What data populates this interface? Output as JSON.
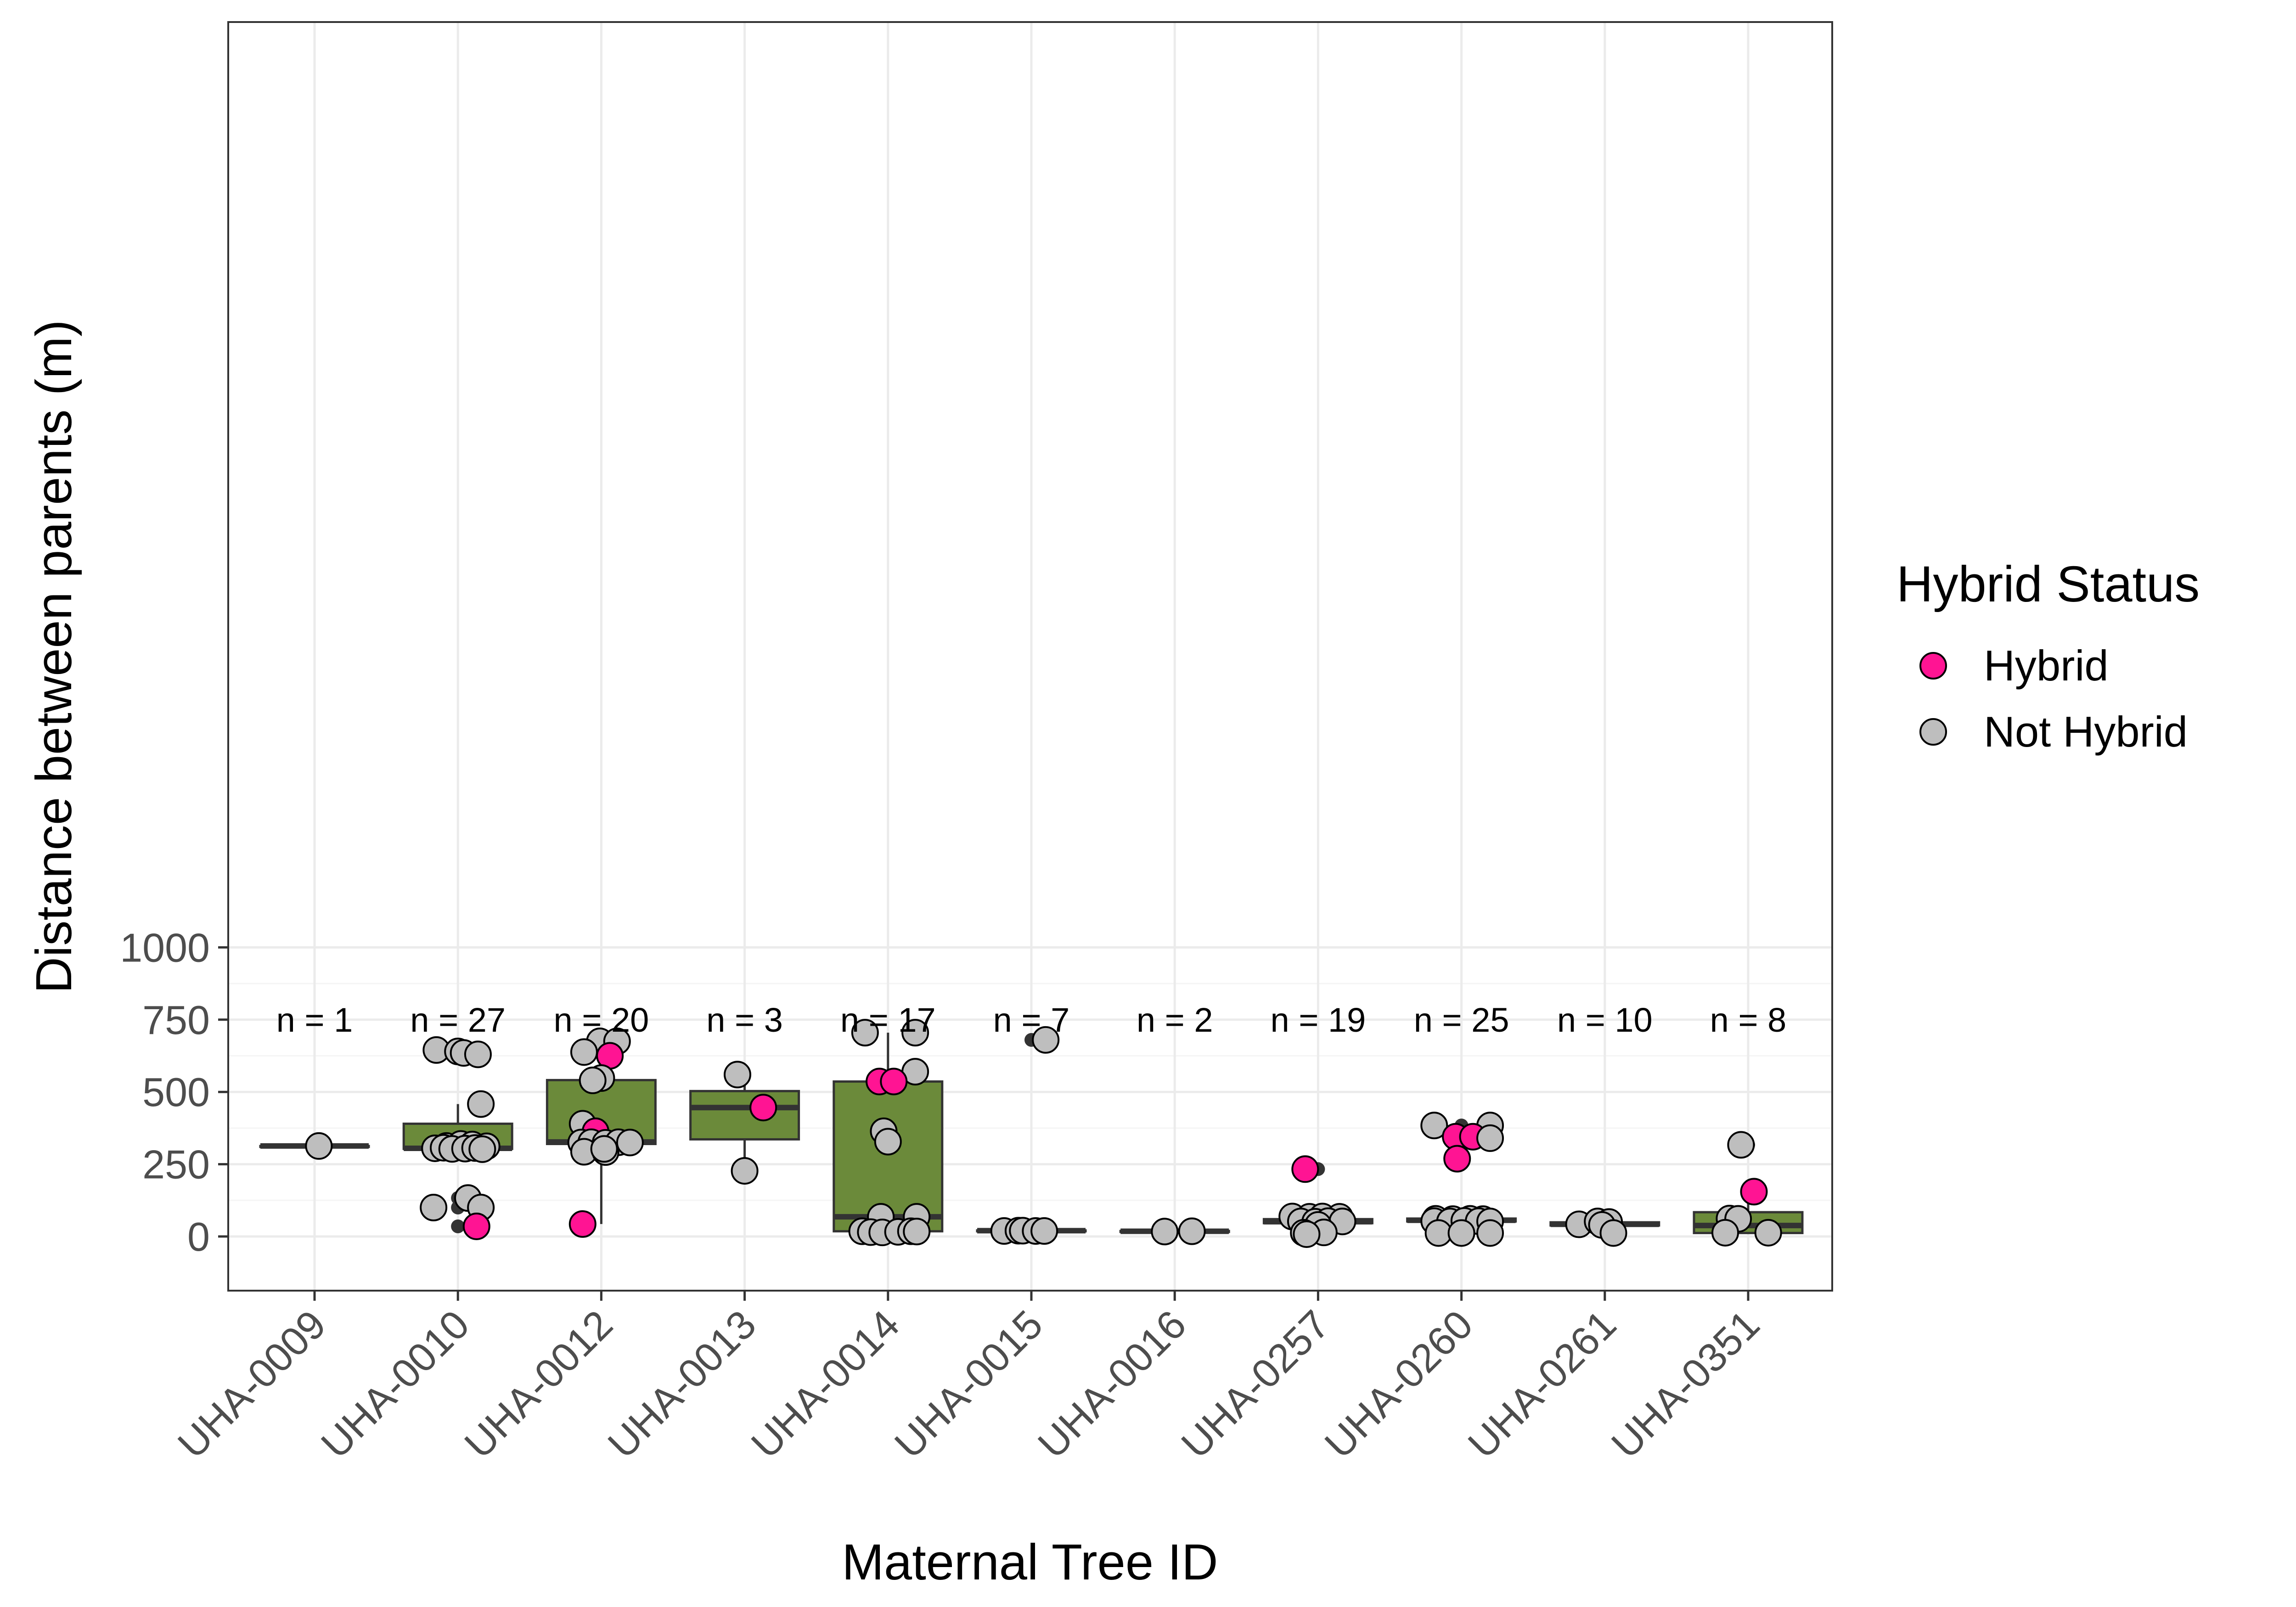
{
  "chart_data": {
    "type": "boxplot",
    "xlabel": "Maternal Tree ID",
    "ylabel": "Distance between parents (m)",
    "ylim": [
      -75,
      1060
    ],
    "yticks": [
      0,
      250,
      500,
      750,
      1000
    ],
    "grid": true,
    "colors": {
      "box_fill": "#6b8a3a",
      "box_stroke": "#333333",
      "hybrid": "#ff1493",
      "not_hybrid": "#bebebe",
      "grid_major": "#ebebeb",
      "grid_minor": "#f5f5f5"
    },
    "legend": {
      "title": "Hybrid Status",
      "position": "right",
      "items": [
        {
          "label": "Hybrid",
          "color": "#ff1493"
        },
        {
          "label": "Not Hybrid",
          "color": "#bebebe"
        }
      ]
    },
    "categories": [
      "UHA-0009",
      "UHA-0010",
      "UHA-0012",
      "UHA-0013",
      "UHA-0014",
      "UHA-0015",
      "UHA-0016",
      "UHA-0257",
      "UHA-0260",
      "UHA-0261",
      "UHA-0351"
    ],
    "n_labels": [
      "n = 1",
      "n = 27",
      "n = 20",
      "n = 3",
      "n = 17",
      "n = 7",
      "n = 2",
      "n = 19",
      "n = 25",
      "n = 10",
      "n = 8"
    ],
    "boxes": [
      {
        "q1": 313,
        "median": 313,
        "q3": 313,
        "whisker_low": 313,
        "whisker_high": 313,
        "outliers": []
      },
      {
        "q1": 303,
        "median": 305,
        "q3": 390,
        "whisker_low": 303,
        "whisker_high": 458,
        "outliers": [
          640,
          635,
          630,
          133,
          100,
          35
        ]
      },
      {
        "q1": 320,
        "median": 327,
        "q3": 541,
        "whisker_low": 43,
        "whisker_high": 675,
        "outliers": []
      },
      {
        "q1": 336,
        "median": 446,
        "q3": 503,
        "whisker_low": 227,
        "whisker_high": 560,
        "outliers": []
      },
      {
        "q1": 18,
        "median": 68,
        "q3": 536,
        "whisker_low": 15,
        "whisker_high": 705,
        "outliers": []
      },
      {
        "q1": 18,
        "median": 20,
        "q3": 21,
        "whisker_low": 18,
        "whisker_high": 21,
        "outliers": [
          680
        ]
      },
      {
        "q1": 16,
        "median": 18,
        "q3": 19,
        "whisker_low": 16,
        "whisker_high": 19,
        "outliers": []
      },
      {
        "q1": 46,
        "median": 51,
        "q3": 60,
        "whisker_low": 40,
        "whisker_high": 69,
        "outliers": [
          233,
          13,
          8
        ]
      },
      {
        "q1": 52,
        "median": 56,
        "q3": 62,
        "whisker_low": 52,
        "whisker_high": 62,
        "outliers": [
          384,
          345,
          340,
          269,
          12
        ]
      },
      {
        "q1": 38,
        "median": 42,
        "q3": 49,
        "whisker_low": 38,
        "whisker_high": 49,
        "outliers": [
          12
        ]
      },
      {
        "q1": 12,
        "median": 38,
        "q3": 84,
        "whisker_low": 12,
        "whisker_high": 155,
        "outliers": [
          317
        ]
      }
    ],
    "points": [
      [
        {
          "dx": 0.03,
          "y": 313,
          "h": false
        }
      ],
      [
        {
          "dx": -0.15,
          "y": 645,
          "h": false
        },
        {
          "dx": 0.0,
          "y": 640,
          "h": false
        },
        {
          "dx": 0.04,
          "y": 635,
          "h": false
        },
        {
          "dx": 0.14,
          "y": 630,
          "h": false
        },
        {
          "dx": 0.16,
          "y": 458,
          "h": false
        },
        {
          "dx": -0.08,
          "y": 313,
          "h": false
        },
        {
          "dx": 0.02,
          "y": 320,
          "h": false
        },
        {
          "dx": 0.1,
          "y": 318,
          "h": false
        },
        {
          "dx": 0.2,
          "y": 312,
          "h": false
        },
        {
          "dx": -0.16,
          "y": 305,
          "h": false
        },
        {
          "dx": -0.1,
          "y": 307,
          "h": false
        },
        {
          "dx": -0.04,
          "y": 303,
          "h": false
        },
        {
          "dx": 0.05,
          "y": 304,
          "h": false
        },
        {
          "dx": 0.12,
          "y": 306,
          "h": false
        },
        {
          "dx": 0.17,
          "y": 302,
          "h": false
        },
        {
          "dx": 0.07,
          "y": 133,
          "h": false
        },
        {
          "dx": -0.17,
          "y": 100,
          "h": false
        },
        {
          "dx": 0.16,
          "y": 100,
          "h": false
        },
        {
          "dx": 0.13,
          "y": 35,
          "h": true
        }
      ],
      [
        {
          "dx": -0.01,
          "y": 675,
          "h": false
        },
        {
          "dx": 0.11,
          "y": 675,
          "h": false
        },
        {
          "dx": -0.12,
          "y": 638,
          "h": false
        },
        {
          "dx": 0.06,
          "y": 625,
          "h": true
        },
        {
          "dx": 0.0,
          "y": 548,
          "h": false
        },
        {
          "dx": -0.06,
          "y": 540,
          "h": false
        },
        {
          "dx": -0.13,
          "y": 390,
          "h": false
        },
        {
          "dx": -0.04,
          "y": 364,
          "h": true
        },
        {
          "dx": -0.14,
          "y": 325,
          "h": false
        },
        {
          "dx": -0.07,
          "y": 326,
          "h": false
        },
        {
          "dx": 0.03,
          "y": 324,
          "h": false
        },
        {
          "dx": 0.12,
          "y": 326,
          "h": false
        },
        {
          "dx": 0.2,
          "y": 325,
          "h": false
        },
        {
          "dx": -0.12,
          "y": 293,
          "h": false
        },
        {
          "dx": 0.03,
          "y": 292,
          "h": false
        },
        {
          "dx": 0.02,
          "y": 303,
          "h": false
        },
        {
          "dx": -0.13,
          "y": 43,
          "h": true
        }
      ],
      [
        {
          "dx": -0.05,
          "y": 560,
          "h": false
        },
        {
          "dx": 0.13,
          "y": 446,
          "h": true
        },
        {
          "dx": 0.0,
          "y": 227,
          "h": false
        }
      ],
      [
        {
          "dx": -0.16,
          "y": 705,
          "h": false
        },
        {
          "dx": 0.19,
          "y": 705,
          "h": false
        },
        {
          "dx": 0.19,
          "y": 570,
          "h": false
        },
        {
          "dx": -0.06,
          "y": 536,
          "h": true
        },
        {
          "dx": 0.04,
          "y": 536,
          "h": true
        },
        {
          "dx": -0.03,
          "y": 364,
          "h": false
        },
        {
          "dx": 0.0,
          "y": 328,
          "h": false
        },
        {
          "dx": -0.05,
          "y": 68,
          "h": false
        },
        {
          "dx": 0.2,
          "y": 68,
          "h": false
        },
        {
          "dx": -0.18,
          "y": 18,
          "h": false
        },
        {
          "dx": -0.12,
          "y": 15,
          "h": false
        },
        {
          "dx": -0.04,
          "y": 14,
          "h": false
        },
        {
          "dx": 0.07,
          "y": 16,
          "h": false
        },
        {
          "dx": 0.16,
          "y": 18,
          "h": false
        },
        {
          "dx": 0.2,
          "y": 17,
          "h": false
        }
      ],
      [
        {
          "dx": 0.1,
          "y": 680,
          "h": false
        },
        {
          "dx": -0.19,
          "y": 19,
          "h": false
        },
        {
          "dx": -0.09,
          "y": 20,
          "h": false
        },
        {
          "dx": -0.06,
          "y": 20,
          "h": false
        },
        {
          "dx": 0.03,
          "y": 19,
          "h": false
        },
        {
          "dx": 0.09,
          "y": 19,
          "h": false
        }
      ],
      [
        {
          "dx": -0.07,
          "y": 17,
          "h": false
        },
        {
          "dx": 0.12,
          "y": 18,
          "h": false
        }
      ],
      [
        {
          "dx": -0.09,
          "y": 233,
          "h": true
        },
        {
          "dx": -0.18,
          "y": 69,
          "h": false
        },
        {
          "dx": -0.06,
          "y": 68,
          "h": false
        },
        {
          "dx": 0.03,
          "y": 69,
          "h": false
        },
        {
          "dx": 0.15,
          "y": 68,
          "h": false
        },
        {
          "dx": -0.12,
          "y": 52,
          "h": false
        },
        {
          "dx": -0.02,
          "y": 51,
          "h": false
        },
        {
          "dx": 0.07,
          "y": 53,
          "h": false
        },
        {
          "dx": 0.17,
          "y": 52,
          "h": false
        },
        {
          "dx": 0.0,
          "y": 40,
          "h": false
        },
        {
          "dx": -0.1,
          "y": 13,
          "h": false
        },
        {
          "dx": 0.04,
          "y": 14,
          "h": false
        },
        {
          "dx": -0.08,
          "y": 8,
          "h": false
        }
      ],
      [
        {
          "dx": -0.19,
          "y": 384,
          "h": false
        },
        {
          "dx": 0.2,
          "y": 384,
          "h": false
        },
        {
          "dx": -0.04,
          "y": 345,
          "h": true
        },
        {
          "dx": 0.08,
          "y": 345,
          "h": true
        },
        {
          "dx": 0.2,
          "y": 340,
          "h": false
        },
        {
          "dx": -0.03,
          "y": 269,
          "h": true
        },
        {
          "dx": -0.18,
          "y": 61,
          "h": false
        },
        {
          "dx": -0.06,
          "y": 60,
          "h": false
        },
        {
          "dx": 0.06,
          "y": 61,
          "h": false
        },
        {
          "dx": 0.15,
          "y": 60,
          "h": false
        },
        {
          "dx": -0.19,
          "y": 53,
          "h": false
        },
        {
          "dx": -0.08,
          "y": 52,
          "h": false
        },
        {
          "dx": 0.02,
          "y": 54,
          "h": false
        },
        {
          "dx": 0.12,
          "y": 53,
          "h": false
        },
        {
          "dx": 0.2,
          "y": 52,
          "h": false
        },
        {
          "dx": -0.16,
          "y": 12,
          "h": false
        },
        {
          "dx": 0.0,
          "y": 12,
          "h": false
        },
        {
          "dx": 0.2,
          "y": 12,
          "h": false
        }
      ],
      [
        {
          "dx": -0.18,
          "y": 42,
          "h": false
        },
        {
          "dx": -0.05,
          "y": 52,
          "h": false
        },
        {
          "dx": 0.03,
          "y": 50,
          "h": false
        },
        {
          "dx": -0.02,
          "y": 40,
          "h": false
        },
        {
          "dx": 0.06,
          "y": 12,
          "h": false
        }
      ],
      [
        {
          "dx": -0.05,
          "y": 317,
          "h": false
        },
        {
          "dx": 0.04,
          "y": 155,
          "h": true
        },
        {
          "dx": -0.13,
          "y": 62,
          "h": false
        },
        {
          "dx": -0.07,
          "y": 61,
          "h": false
        },
        {
          "dx": -0.16,
          "y": 13,
          "h": false
        },
        {
          "dx": 0.14,
          "y": 13,
          "h": false
        }
      ]
    ]
  }
}
